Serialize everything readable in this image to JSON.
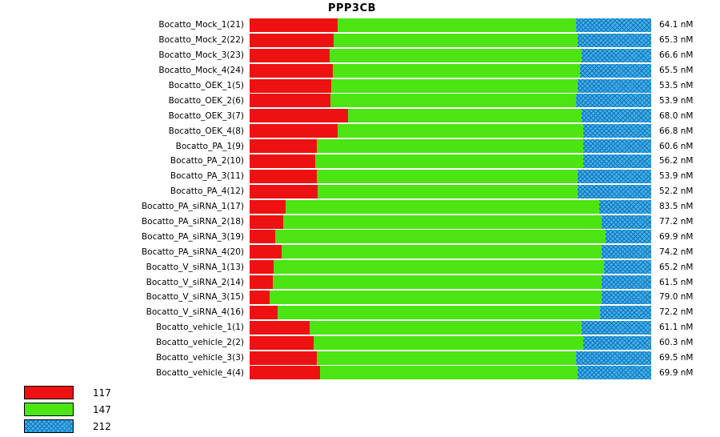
{
  "title": "PPP3CB",
  "colors": {
    "red": "#ee1111",
    "green": "#4ce412",
    "blue": "#3cb4e6",
    "blue_hatch": "#1b6fbe"
  },
  "legend": [
    {
      "label": "117",
      "series": "red"
    },
    {
      "label": "147",
      "series": "green"
    },
    {
      "label": "212",
      "series": "blue"
    }
  ],
  "chart_data": {
    "type": "bar",
    "orientation": "horizontal",
    "stacked": true,
    "normalized": true,
    "title": "PPP3CB",
    "series_names": [
      "117",
      "147",
      "212"
    ],
    "unit": "nM",
    "rows": [
      {
        "label": "Bocatto_Mock_1(21)",
        "value": "64.1 nM",
        "fractions": [
          0.219,
          0.594,
          0.187
        ]
      },
      {
        "label": "Bocatto_Mock_2(22)",
        "value": "65.3 nM",
        "fractions": [
          0.209,
          0.608,
          0.183
        ]
      },
      {
        "label": "Bocatto_Mock_3(23)",
        "value": "66.6 nM",
        "fractions": [
          0.199,
          0.628,
          0.173
        ]
      },
      {
        "label": "Bocatto_Mock_4(24)",
        "value": "65.5 nM",
        "fractions": [
          0.207,
          0.616,
          0.177
        ]
      },
      {
        "label": "Bocatto_OEK_1(5)",
        "value": "53.5 nM",
        "fractions": [
          0.203,
          0.614,
          0.183
        ]
      },
      {
        "label": "Bocatto_OEK_2(6)",
        "value": "53.9 nM",
        "fractions": [
          0.201,
          0.612,
          0.187
        ]
      },
      {
        "label": "Bocatto_OEK_3(7)",
        "value": "68.0 nM",
        "fractions": [
          0.245,
          0.582,
          0.173
        ]
      },
      {
        "label": "Bocatto_OEK_4(8)",
        "value": "66.8 nM",
        "fractions": [
          0.219,
          0.612,
          0.169
        ]
      },
      {
        "label": "Bocatto_PA_1(9)",
        "value": "60.6 nM",
        "fractions": [
          0.167,
          0.664,
          0.169
        ]
      },
      {
        "label": "Bocatto_PA_2(10)",
        "value": "56.2 nM",
        "fractions": [
          0.163,
          0.668,
          0.169
        ]
      },
      {
        "label": "Bocatto_PA_3(11)",
        "value": "53.9 nM",
        "fractions": [
          0.167,
          0.65,
          0.183
        ]
      },
      {
        "label": "Bocatto_PA_4(12)",
        "value": "52.2 nM",
        "fractions": [
          0.169,
          0.648,
          0.183
        ]
      },
      {
        "label": "Bocatto_PA_siRNA_1(17)",
        "value": "83.5 nM",
        "fractions": [
          0.09,
          0.781,
          0.129
        ]
      },
      {
        "label": "Bocatto_PA_siRNA_2(18)",
        "value": "77.2 nM",
        "fractions": [
          0.084,
          0.792,
          0.124
        ]
      },
      {
        "label": "Bocatto_PA_siRNA_3(19)",
        "value": "69.9 nM",
        "fractions": [
          0.064,
          0.822,
          0.114
        ]
      },
      {
        "label": "Bocatto_PA_siRNA_4(20)",
        "value": "74.2 nM",
        "fractions": [
          0.08,
          0.796,
          0.124
        ]
      },
      {
        "label": "Bocatto_V_siRNA_1(13)",
        "value": "65.2 nM",
        "fractions": [
          0.06,
          0.822,
          0.118
        ]
      },
      {
        "label": "Bocatto_V_siRNA_2(14)",
        "value": "61.5 nM",
        "fractions": [
          0.058,
          0.818,
          0.124
        ]
      },
      {
        "label": "Bocatto_V_siRNA_3(15)",
        "value": "79.0 nM",
        "fractions": [
          0.05,
          0.826,
          0.124
        ]
      },
      {
        "label": "Bocatto_V_siRNA_4(16)",
        "value": "72.2 nM",
        "fractions": [
          0.07,
          0.802,
          0.128
        ]
      },
      {
        "label": "Bocatto_vehicle_1(1)",
        "value": "61.1 nM",
        "fractions": [
          0.149,
          0.678,
          0.173
        ]
      },
      {
        "label": "Bocatto_vehicle_2(2)",
        "value": "60.3 nM",
        "fractions": [
          0.159,
          0.672,
          0.169
        ]
      },
      {
        "label": "Bocatto_vehicle_3(3)",
        "value": "69.5 nM",
        "fractions": [
          0.167,
          0.646,
          0.187
        ]
      },
      {
        "label": "Bocatto_vehicle_4(4)",
        "value": "69.9 nM",
        "fractions": [
          0.175,
          0.642,
          0.183
        ]
      }
    ]
  }
}
